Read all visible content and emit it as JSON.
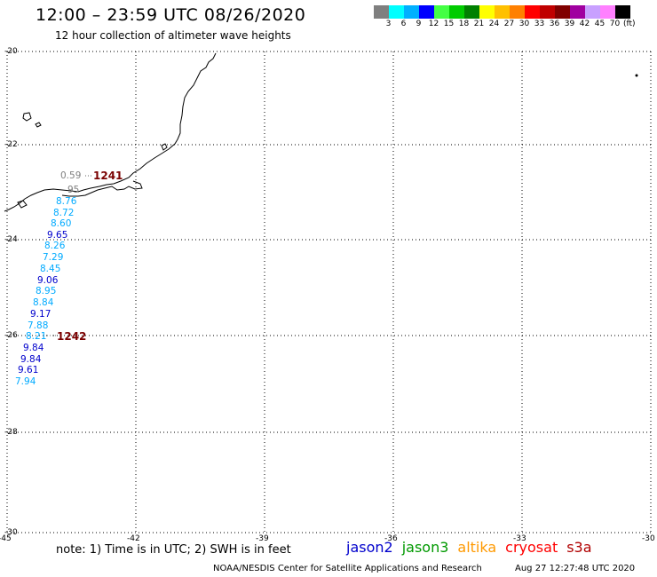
{
  "header": {
    "title": "12:00 – 23:59 UTC 08/26/2020",
    "subtitle": "12 hour collection of altimeter wave heights"
  },
  "legend": {
    "colors": [
      "#7f7f7f",
      "#00ffff",
      "#00b0ff",
      "#0000ff",
      "#44ff44",
      "#00cc00",
      "#008000",
      "#ffff00",
      "#ffc000",
      "#ff8000",
      "#ff0000",
      "#c00000",
      "#800000",
      "#a000a0",
      "#c8a0ff",
      "#ff80ff",
      "#000000"
    ],
    "labels": [
      "3",
      "6",
      "9",
      "12",
      "15",
      "18",
      "21",
      "24",
      "27",
      "30",
      "33",
      "36",
      "39",
      "42",
      "45",
      "70"
    ],
    "unit": "(ft)"
  },
  "axes": {
    "lat_labels": [
      "-20",
      "-22",
      "-24",
      "-26",
      "-28",
      "-30"
    ],
    "lon_labels": [
      "-45",
      "-42",
      "-39",
      "-36",
      "-33",
      "-30"
    ]
  },
  "passes": [
    {
      "id": "1241"
    },
    {
      "id": "1242"
    }
  ],
  "points": [
    {
      "v": "0.59",
      "color": "#7f7f7f"
    },
    {
      "v": "95",
      "color": "#7f7f7f"
    },
    {
      "v": "8.76",
      "color": "#00aaff"
    },
    {
      "v": "8.72",
      "color": "#00aaff"
    },
    {
      "v": "8.60",
      "color": "#00aaff"
    },
    {
      "v": "9.65",
      "color": "#0000cc"
    },
    {
      "v": "8.26",
      "color": "#00aaff"
    },
    {
      "v": "7.29",
      "color": "#00aaff"
    },
    {
      "v": "8.45",
      "color": "#00aaff"
    },
    {
      "v": "9.06",
      "color": "#0000cc"
    },
    {
      "v": "8.95",
      "color": "#00aaff"
    },
    {
      "v": "8.84",
      "color": "#00aaff"
    },
    {
      "v": "9.17",
      "color": "#0000cc"
    },
    {
      "v": "7.88",
      "color": "#00aaff"
    },
    {
      "v": "8.21",
      "color": "#00aaff"
    },
    {
      "v": "9.84",
      "color": "#0000cc"
    },
    {
      "v": "9.84",
      "color": "#0000cc"
    },
    {
      "v": "9.61",
      "color": "#0000cc"
    },
    {
      "v": "7.94",
      "color": "#00aaff"
    }
  ],
  "footer": {
    "note": "note: 1) Time is in UTC; 2) SWH is in feet",
    "satellites": [
      {
        "name": "jason2",
        "color": "#0000cc"
      },
      {
        "name": "jason3",
        "color": "#009900"
      },
      {
        "name": "altika",
        "color": "#ff9900"
      },
      {
        "name": "cryosat",
        "color": "#ff0000"
      },
      {
        "name": "s3a",
        "color": "#b00000"
      }
    ],
    "credit": "NOAA/NESDIS Center for Satellite Applications and Research",
    "timestamp": "Aug 27 12:27:48 UTC 2020"
  }
}
